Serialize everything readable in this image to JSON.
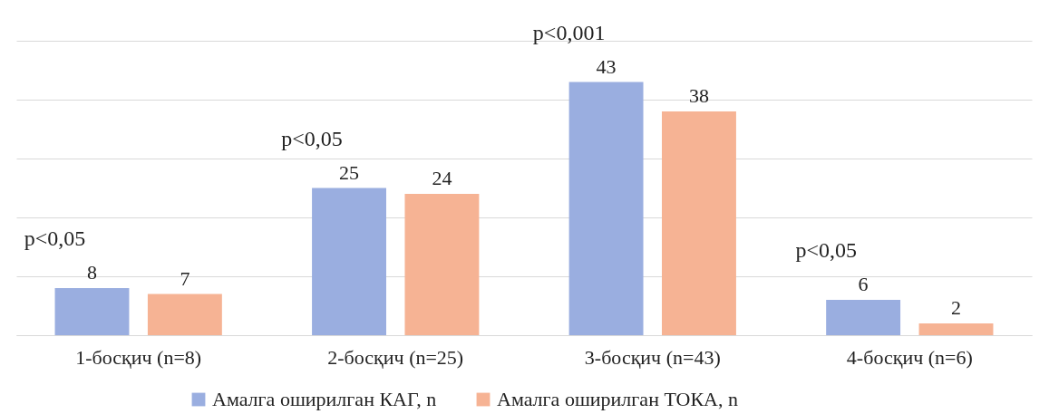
{
  "chart_data": {
    "type": "bar",
    "categories": [
      "1-босқич (n=8)",
      "2-босқич (n=25)",
      "3-босқич (n=43)",
      "4-босқич (n=6)"
    ],
    "series": [
      {
        "name": "Амалга оширилган КАГ, n",
        "color": "#9aaee0",
        "values": [
          8,
          25,
          43,
          6
        ]
      },
      {
        "name": "Амалга оширилган ТОКА, n",
        "color": "#f6b394",
        "values": [
          7,
          24,
          38,
          2
        ]
      }
    ],
    "ylim": [
      0,
      50
    ],
    "yticks": [
      {
        "value": 0,
        "label": null
      },
      {
        "value": 10,
        "label": null
      },
      {
        "value": 20,
        "label": null
      },
      {
        "value": 30,
        "label": null
      },
      {
        "value": 40,
        "label": null
      },
      {
        "value": 50,
        "label": null
      }
    ],
    "tick_labels": "x",
    "grid": "y",
    "legend": "bottom",
    "data_labels": true,
    "annotations": [
      "p<0,05",
      "p<0,05",
      "p<0,001",
      "p<0,05"
    ]
  }
}
